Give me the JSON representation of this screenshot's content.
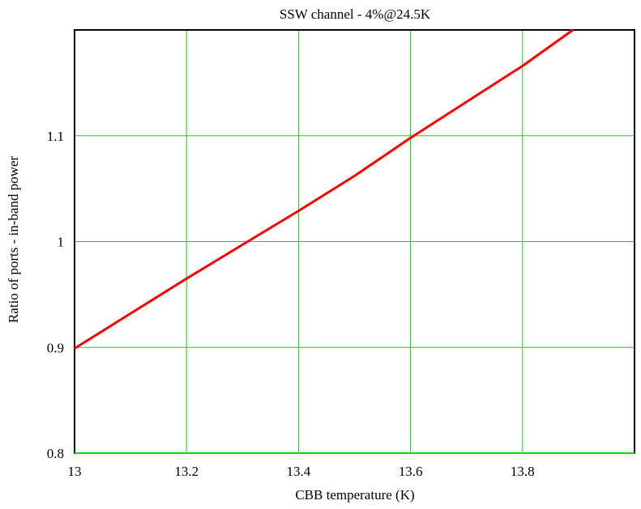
{
  "chart_data": {
    "type": "line",
    "title": "SSW channel - 4%@24.5K",
    "xlabel": "CBB temperature (K)",
    "ylabel": "Ratio of ports - in-band power",
    "xlim": [
      13,
      14
    ],
    "ylim": [
      0.8,
      1.2
    ],
    "x_ticks": [
      13,
      13.2,
      13.4,
      13.6,
      13.8
    ],
    "x_tick_labels": [
      "13",
      "13.2",
      "13.4",
      "13.6",
      "13.8"
    ],
    "y_ticks": [
      0.8,
      0.9,
      1.0,
      1.1
    ],
    "y_tick_labels": [
      "0.8",
      "0.9",
      "1",
      "1.1"
    ],
    "grid": true,
    "series": [
      {
        "color": "#ff0000",
        "x": [
          13.0,
          13.1,
          13.2,
          13.3,
          13.4,
          13.5,
          13.6,
          13.7,
          13.8,
          13.89
        ],
        "y": [
          0.899,
          0.932,
          0.965,
          0.997,
          1.029,
          1.062,
          1.098,
          1.132,
          1.166,
          1.2
        ]
      }
    ],
    "grid_color": "#00dd00",
    "frame_color": "#000000"
  }
}
